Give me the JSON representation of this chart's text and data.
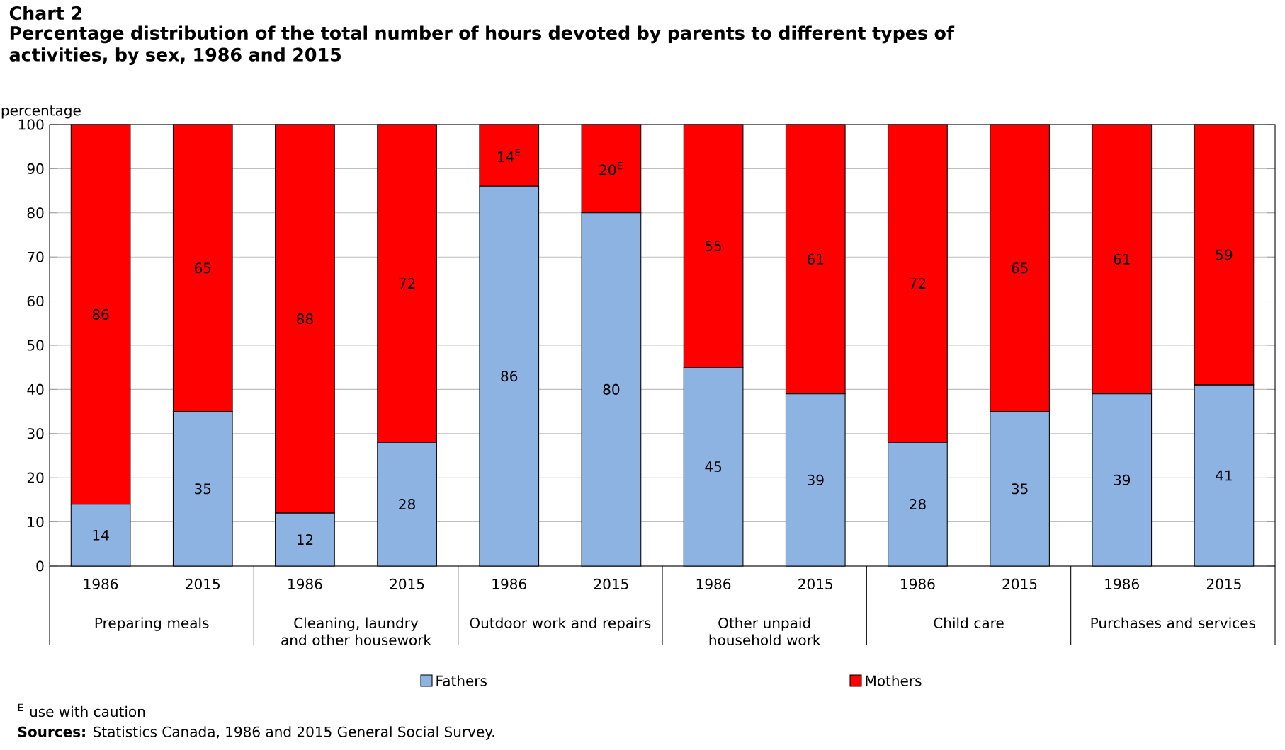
{
  "chart_data": {
    "type": "bar",
    "stacked": true,
    "title": "Chart 2",
    "subtitle": "Percentage distribution  of the total number of hours devoted by parents to different types of activities, by sex, 1986 and 2015",
    "ylabel": "percentage",
    "categories": [
      "1986",
      "2015",
      "1986",
      "2015",
      "1986",
      "2015",
      "1986",
      "2015",
      "1986",
      "2015",
      "1986",
      "2015"
    ],
    "series": [
      {
        "name": "Fathers",
        "color": "#8db3e2",
        "values": [
          14,
          35,
          12,
          28,
          86,
          80,
          45,
          39,
          28,
          35,
          39,
          41
        ],
        "value_labels": [
          "14",
          "35",
          "12",
          "28",
          "86",
          "80",
          "45",
          "39",
          "28",
          "35",
          "39",
          "41"
        ]
      },
      {
        "name": "Mothers",
        "color": "#ff0000",
        "values": [
          86,
          65,
          88,
          72,
          14,
          20,
          55,
          61,
          72,
          65,
          61,
          59
        ],
        "value_labels": [
          "86",
          "65",
          "88",
          "72",
          "14$^{E}$",
          "20$^{E}$",
          "55",
          "61",
          "72",
          "65",
          "61",
          "59"
        ]
      }
    ],
    "annotations": [
      "Preparing meals",
      "Cleaning, laundry and other housework",
      "Outdoor work and repairs",
      "Other unpaid household work",
      "Child care",
      "Purchases and services",
      "$^{E}$ use with caution",
      "**Sources:** Statistics Canada, 1986 and 2015 General Social Survey."
    ],
    "ylim": [
      0,
      100
    ],
    "yticks": [
      0,
      10,
      20,
      30,
      40,
      50,
      60,
      70,
      80,
      90,
      100
    ],
    "grid": "y",
    "legend": "bottom"
  }
}
